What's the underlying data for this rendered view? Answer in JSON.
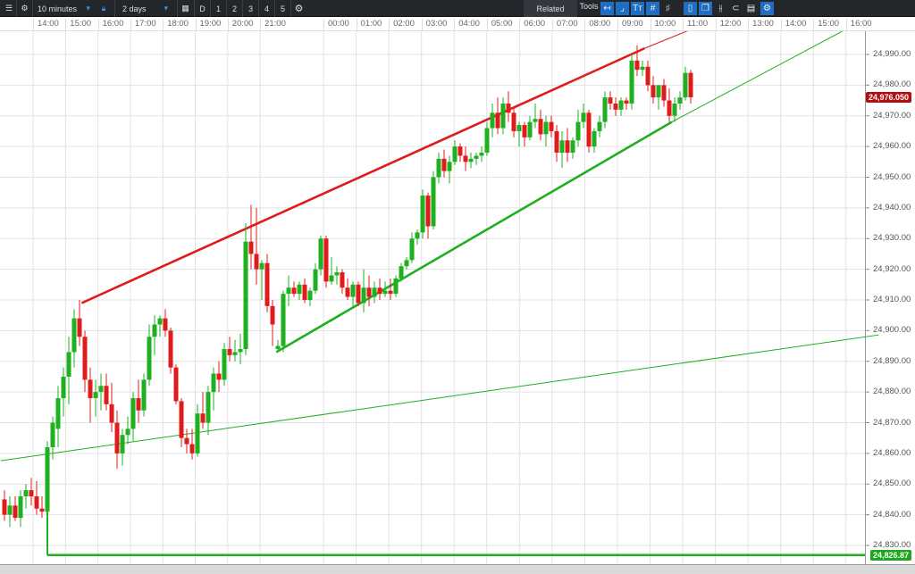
{
  "toolbar": {
    "interval": "10 minutes",
    "range": "2 days",
    "day_label": "D",
    "presets": [
      "1",
      "2",
      "3",
      "4",
      "5"
    ],
    "related_label": "Related",
    "tools_label": "Tools",
    "tool_icons": [
      "back-arrow-icon",
      "curve-icon",
      "text-icon",
      "grid-icon",
      "draw-grid-icon",
      "candle-icon",
      "windows-icon",
      "bars-icon",
      "tag-icon",
      "printer-icon",
      "settings-icon"
    ]
  },
  "colors": {
    "up": "#1fb01f",
    "down": "#e01b1b",
    "price_badge": "#b40d0d",
    "level_badge": "#1fa51f",
    "toolbar": "#23272c",
    "active_tool": "#1e6fc4"
  },
  "chart_data": {
    "type": "candlestick",
    "interval": "10 minutes",
    "x_ticks": [
      {
        "label": "14:00",
        "day": 1
      },
      {
        "label": "15:00",
        "day": 1
      },
      {
        "label": "16:00",
        "day": 1
      },
      {
        "label": "17:00",
        "day": 1
      },
      {
        "label": "18:00",
        "day": 1
      },
      {
        "label": "19:00",
        "day": 1
      },
      {
        "label": "20:00",
        "day": 1
      },
      {
        "label": "21:00",
        "day": 1
      },
      {
        "label": "00:00",
        "day": 2
      },
      {
        "label": "01:00",
        "day": 2
      },
      {
        "label": "02:00",
        "day": 2
      },
      {
        "label": "03:00",
        "day": 2
      },
      {
        "label": "04:00",
        "day": 2
      },
      {
        "label": "05:00",
        "day": 2
      },
      {
        "label": "06:00",
        "day": 2
      },
      {
        "label": "07:00",
        "day": 2
      },
      {
        "label": "08:00",
        "day": 2
      },
      {
        "label": "09:00",
        "day": 2
      },
      {
        "label": "10:00",
        "day": 2
      },
      {
        "label": "11:00",
        "day": 2
      },
      {
        "label": "12:00",
        "day": 2
      },
      {
        "label": "13:00",
        "day": 2
      },
      {
        "label": "14:00",
        "day": 2
      },
      {
        "label": "15:00",
        "day": 2
      },
      {
        "label": "16:00",
        "day": 2
      }
    ],
    "y_ticks": [
      "24,990.00",
      "24,980.00",
      "24,970.00",
      "24,960.00",
      "24,950.00",
      "24,940.00",
      "24,930.00",
      "24,920.00",
      "24,910.00",
      "24,900.00",
      "24,890.00",
      "24,880.00",
      "24,870.00",
      "24,860.00",
      "24,850.00",
      "24,840.00",
      "24,830.00"
    ],
    "ylim": [
      24825,
      25002
    ],
    "grid": true,
    "last_price": "24,976.050",
    "level_label": "24,826.87",
    "level": 24826.87,
    "candles": [
      [
        24845,
        24848,
        24838,
        24840
      ],
      [
        24840,
        24846,
        24836,
        24843
      ],
      [
        24843,
        24846,
        24838,
        24839
      ],
      [
        24839,
        24848,
        24836,
        24846
      ],
      [
        24846,
        24850,
        24842,
        24848
      ],
      [
        24848,
        24852,
        24843,
        24846
      ],
      [
        24846,
        24851,
        24840,
        24842
      ],
      [
        24842,
        24846,
        24839,
        24841
      ],
      [
        24841,
        24864,
        24826.87,
        24862
      ],
      [
        24862,
        24872,
        24858,
        24870
      ],
      [
        24868,
        24882,
        24862,
        24878
      ],
      [
        24878,
        24888,
        24872,
        24885
      ],
      [
        24885,
        24898,
        24876,
        24893
      ],
      [
        24893,
        24907,
        24888,
        24904
      ],
      [
        24904,
        24910,
        24895,
        24898
      ],
      [
        24898,
        24900,
        24880,
        24884
      ],
      [
        24884,
        24888,
        24870,
        24878
      ],
      [
        24878,
        24884,
        24872,
        24880
      ],
      [
        24880,
        24886,
        24874,
        24882
      ],
      [
        24882,
        24886,
        24874,
        24876
      ],
      [
        24876,
        24883,
        24867,
        24870
      ],
      [
        24870,
        24874,
        24855,
        24860
      ],
      [
        24860,
        24868,
        24856,
        24866
      ],
      [
        24866,
        24872,
        24863,
        24868
      ],
      [
        24868,
        24880,
        24864,
        24878
      ],
      [
        24878,
        24884,
        24870,
        24874
      ],
      [
        24874,
        24886,
        24872,
        24884
      ],
      [
        24884,
        24902,
        24882,
        24898
      ],
      [
        24898,
        24905,
        24892,
        24902
      ],
      [
        24902,
        24905,
        24898,
        24904
      ],
      [
        24904,
        24907,
        24898,
        24900
      ],
      [
        24900,
        24901,
        24886,
        24888
      ],
      [
        24888,
        24889,
        24876,
        24877
      ],
      [
        24877,
        24878,
        24862,
        24865
      ],
      [
        24865,
        24868,
        24860,
        24863
      ],
      [
        24863,
        24868,
        24858,
        24860
      ],
      [
        24860,
        24876,
        24859,
        24873
      ],
      [
        24873,
        24880,
        24868,
        24870
      ],
      [
        24870,
        24882,
        24866,
        24880
      ],
      [
        24880,
        24888,
        24874,
        24886
      ],
      [
        24886,
        24890,
        24880,
        24884
      ],
      [
        24884,
        24896,
        24882,
        24894
      ],
      [
        24894,
        24898,
        24890,
        24892
      ],
      [
        24892,
        24897,
        24890,
        24893
      ],
      [
        24893,
        24899,
        24889,
        24894
      ],
      [
        24894,
        24935,
        24892,
        24929
      ],
      [
        24929,
        24941,
        24920,
        24925
      ],
      [
        24925,
        24940,
        24915,
        24920
      ],
      [
        24920,
        24923,
        24910,
        24922
      ],
      [
        24922,
        24925,
        24906,
        24908
      ],
      [
        24908,
        24910,
        24895,
        24902
      ],
      [
        24894,
        24897,
        24893,
        24895
      ],
      [
        24895,
        24913,
        24893,
        24912
      ],
      [
        24912,
        24918,
        24908,
        24914
      ],
      [
        24914,
        24916,
        24911,
        24912
      ],
      [
        24912,
        24916,
        24910,
        24915
      ],
      [
        24915,
        24917,
        24909,
        24910
      ],
      [
        24910,
        24914,
        24908,
        24913
      ],
      [
        24913,
        24922,
        24912,
        24920
      ],
      [
        24920,
        24931,
        24918,
        24930
      ],
      [
        24930,
        24931,
        24914,
        24916
      ],
      [
        24916,
        24924,
        24915,
        24918
      ],
      [
        24918,
        24921,
        24915,
        24919
      ],
      [
        24919,
        24920,
        24912,
        24914
      ],
      [
        24914,
        24917,
        24910,
        24911
      ],
      [
        24911,
        24916,
        24908,
        24915
      ],
      [
        24915,
        24916,
        24908,
        24909
      ],
      [
        24909,
        24920,
        24906,
        24914
      ],
      [
        24914,
        24918,
        24908,
        24911
      ],
      [
        24911,
        24916,
        24909,
        24914
      ],
      [
        24914,
        24917,
        24910,
        24912
      ],
      [
        24912,
        24916,
        24911,
        24913
      ],
      [
        24913,
        24917,
        24910,
        24912
      ],
      [
        24912,
        24918,
        24911,
        24917
      ],
      [
        24917,
        24922,
        24916,
        24921
      ],
      [
        24921,
        24924,
        24920,
        24923
      ],
      [
        24923,
        24932,
        24922,
        24930
      ],
      [
        24930,
        24933,
        24928,
        24932
      ],
      [
        24932,
        24946,
        24930,
        24944
      ],
      [
        24944,
        24945,
        24930,
        24934
      ],
      [
        24934,
        24952,
        24933,
        24950
      ],
      [
        24950,
        24958,
        24948,
        24956
      ],
      [
        24956,
        24959,
        24950,
        24952
      ],
      [
        24952,
        24957,
        24948,
        24955
      ],
      [
        24955,
        24962,
        24954,
        24960
      ],
      [
        24960,
        24961,
        24955,
        24957
      ],
      [
        24957,
        24960,
        24952,
        24955
      ],
      [
        24955,
        24958,
        24953,
        24956
      ],
      [
        24956,
        24958,
        24954,
        24957
      ],
      [
        24957,
        24960,
        24955,
        24958
      ],
      [
        24958,
        24968,
        24957,
        24966
      ],
      [
        24966,
        24974,
        24963,
        24971
      ],
      [
        24971,
        24976,
        24964,
        24966
      ],
      [
        24966,
        24976,
        24964,
        24974
      ],
      [
        24974,
        24978,
        24968,
        24971
      ],
      [
        24971,
        24973,
        24963,
        24965
      ],
      [
        24965,
        24968,
        24960,
        24967
      ],
      [
        24967,
        24968,
        24960,
        24963
      ],
      [
        24963,
        24970,
        24962,
        24968
      ],
      [
        24968,
        24974,
        24966,
        24969
      ],
      [
        24969,
        24972,
        24962,
        24964
      ],
      [
        24964,
        24970,
        24960,
        24968
      ],
      [
        24968,
        24970,
        24963,
        24965
      ],
      [
        24965,
        24967,
        24955,
        24958
      ],
      [
        24958,
        24965,
        24953,
        24962
      ],
      [
        24962,
        24966,
        24955,
        24958
      ],
      [
        24958,
        24963,
        24956,
        24962
      ],
      [
        24962,
        24972,
        24960,
        24968
      ],
      [
        24968,
        24974,
        24966,
        24971
      ],
      [
        24971,
        24972,
        24958,
        24960
      ],
      [
        24960,
        24966,
        24958,
        24965
      ],
      [
        24965,
        24970,
        24963,
        24968
      ],
      [
        24968,
        24978,
        24966,
        24976
      ],
      [
        24976,
        24978,
        24972,
        24974
      ],
      [
        24974,
        24976,
        24970,
        24972
      ],
      [
        24972,
        24976,
        24970,
        24975
      ],
      [
        24975,
        24976,
        24972,
        24974
      ],
      [
        24974,
        24990,
        24972,
        24988
      ],
      [
        24988,
        24993,
        24983,
        24985
      ],
      [
        24985,
        24988,
        24983,
        24986
      ],
      [
        24986,
        24988,
        24978,
        24980
      ],
      [
        24980,
        24983,
        24974,
        24976
      ],
      [
        24976,
        24980,
        24972,
        24980
      ],
      [
        24980,
        24982,
        24973,
        24975
      ],
      [
        24975,
        24979,
        24968,
        24970
      ],
      [
        24970,
        24976,
        24968,
        24974
      ],
      [
        24974,
        24978,
        24972,
        24976
      ],
      [
        24976,
        24986,
        24975,
        24984
      ],
      [
        24984,
        24985,
        24974,
        24976.05
      ]
    ],
    "trendlines": [
      {
        "color": "#e01b1b",
        "style": "thick",
        "from": {
          "day": 1,
          "time": "15:30",
          "price": 24909
        },
        "to": {
          "day": 2,
          "time": "09:50",
          "price": 24992
        }
      },
      {
        "color": "#e01b1b",
        "style": "thin",
        "from": {
          "day": 2,
          "time": "09:50",
          "price": 24992
        },
        "to": {
          "day": 2,
          "time": "11:55",
          "price": 25001
        }
      },
      {
        "color": "#1fb01f",
        "style": "thick",
        "from": {
          "day": 1,
          "time": "21:30",
          "price": 24893
        },
        "to": {
          "day": 2,
          "time": "10:40",
          "price": 24968
        }
      },
      {
        "color": "#1fb01f",
        "style": "thin",
        "from": {
          "day": 2,
          "time": "10:40",
          "price": 24968
        },
        "to": {
          "day": 2,
          "time": "16:40",
          "price": 25002
        }
      },
      {
        "color": "#1fb01f",
        "style": "thin",
        "from": {
          "day": 1,
          "time": "13:00",
          "price": 24857.6
        },
        "to": {
          "day": 2,
          "time": "17:00",
          "price": 24898.6
        }
      }
    ]
  }
}
